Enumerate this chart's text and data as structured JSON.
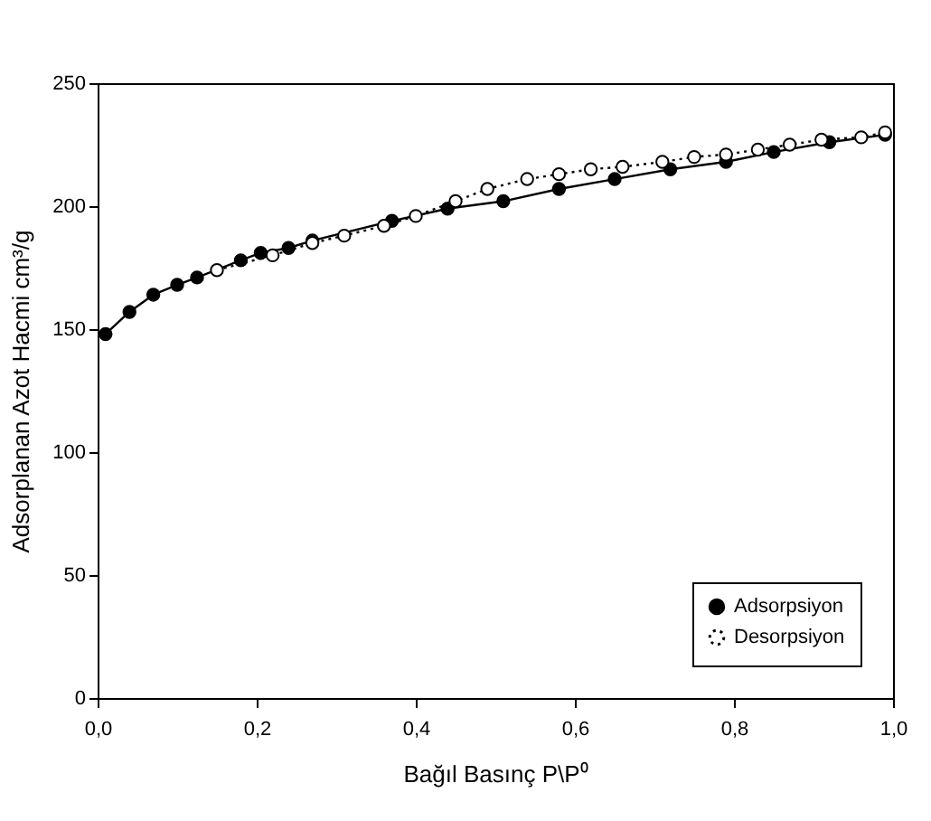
{
  "chart_data": {
    "type": "line",
    "xlabel": "Bağıl Basınç P\\P⁰",
    "ylabel": "Adsorplanan Azot Hacmi cm³/g",
    "xlim": [
      0,
      1
    ],
    "ylim": [
      0,
      250
    ],
    "xticks": [
      {
        "value": 0,
        "label": "0,0"
      },
      {
        "value": 0.2,
        "label": "0,2"
      },
      {
        "value": 0.4,
        "label": "0,4"
      },
      {
        "value": 0.6,
        "label": "0,6"
      },
      {
        "value": 0.8,
        "label": "0,8"
      },
      {
        "value": 1,
        "label": "1,0"
      }
    ],
    "yticks": [
      0,
      50,
      100,
      150,
      200,
      250
    ],
    "legend": "bottom right",
    "grid": false,
    "series": [
      {
        "name": "Adsorpsiyon",
        "color": "#000000",
        "marker": "circle",
        "line_style": "solid",
        "x": [
          0.01,
          0.04,
          0.07,
          0.1,
          0.125,
          0.18,
          0.205,
          0.24,
          0.27,
          0.37,
          0.44,
          0.51,
          0.58,
          0.65,
          0.72,
          0.79,
          0.85,
          0.92,
          0.99
        ],
        "values": [
          148,
          157,
          164,
          168,
          171,
          178,
          181,
          183,
          186,
          194,
          199,
          202,
          207,
          211,
          215,
          218,
          222,
          226,
          229
        ]
      },
      {
        "name": "Desorpsiyon",
        "color": "#000000",
        "marker": "open circle",
        "line_style": "dotted",
        "x": [
          0.15,
          0.22,
          0.27,
          0.31,
          0.36,
          0.4,
          0.45,
          0.49,
          0.54,
          0.58,
          0.62,
          0.66,
          0.71,
          0.75,
          0.79,
          0.83,
          0.87,
          0.91,
          0.96,
          0.99
        ],
        "values": [
          174,
          180,
          185,
          188,
          192,
          196,
          202,
          207,
          211,
          213,
          215,
          216,
          218,
          220,
          221,
          223,
          225,
          227,
          228,
          230
        ]
      }
    ]
  }
}
